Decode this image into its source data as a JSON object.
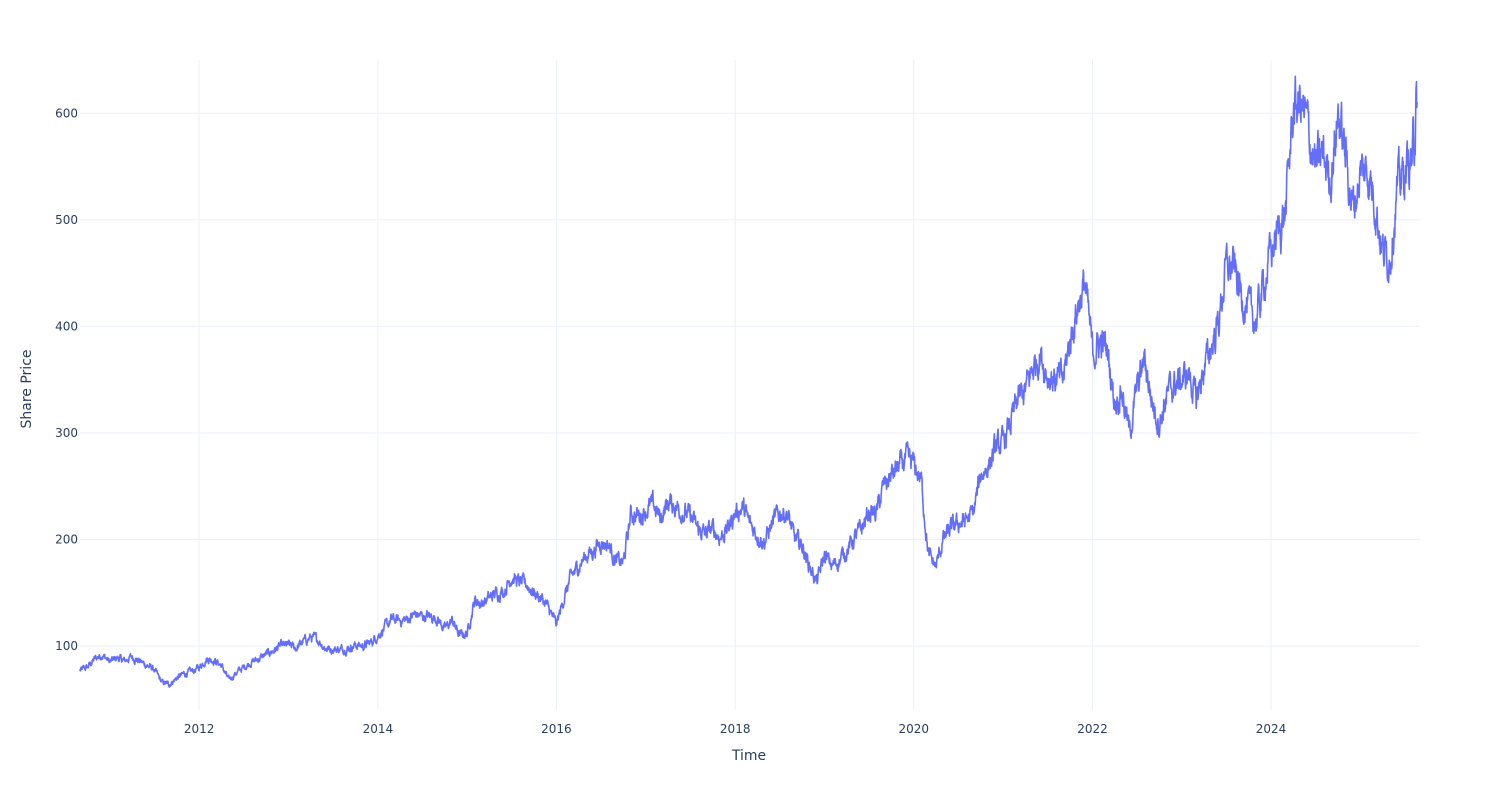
{
  "chart_data": {
    "type": "line",
    "title": "",
    "xlabel": "Time",
    "ylabel": "Share Price",
    "x_tick_labels": [
      "2012",
      "2014",
      "2016",
      "2018",
      "2020",
      "2022",
      "2024"
    ],
    "y_tick_labels": [
      "100",
      "200",
      "300",
      "400",
      "500",
      "600"
    ],
    "x_range": [
      "2010-09-01",
      "2025-09-01"
    ],
    "y_range": [
      40,
      650
    ],
    "grid": true,
    "legend": "none",
    "line_color": "#636efa",
    "series": [
      {
        "x": [
          "2010-09-01",
          "2010-10-01",
          "2010-11-01",
          "2010-12-01",
          "2011-01-01",
          "2011-02-01",
          "2011-03-01",
          "2011-04-01",
          "2011-05-01",
          "2011-06-01",
          "2011-07-01",
          "2011-08-01",
          "2011-09-01",
          "2011-10-01",
          "2011-11-01",
          "2011-12-01",
          "2012-01-01",
          "2012-02-01",
          "2012-03-01",
          "2012-04-01",
          "2012-05-01",
          "2012-06-01",
          "2012-07-01",
          "2012-08-01",
          "2012-09-01",
          "2012-10-01",
          "2012-11-01",
          "2012-12-01",
          "2013-01-01",
          "2013-02-01",
          "2013-03-01",
          "2013-04-01",
          "2013-05-01",
          "2013-06-01",
          "2013-07-01",
          "2013-08-01",
          "2013-09-01",
          "2013-10-01",
          "2013-11-01",
          "2013-12-01",
          "2014-01-01",
          "2014-02-01",
          "2014-03-01",
          "2014-04-01",
          "2014-05-01",
          "2014-06-01",
          "2014-07-01",
          "2014-08-01",
          "2014-09-01",
          "2014-10-01",
          "2014-11-01",
          "2014-12-01",
          "2015-01-01",
          "2015-02-01",
          "2015-03-01",
          "2015-04-01",
          "2015-05-01",
          "2015-06-01",
          "2015-07-01",
          "2015-08-01",
          "2015-09-01",
          "2015-10-01",
          "2015-11-01",
          "2015-12-01",
          "2016-01-01",
          "2016-02-01",
          "2016-03-01",
          "2016-04-01",
          "2016-05-01",
          "2016-06-01",
          "2016-07-01",
          "2016-08-01",
          "2016-09-01",
          "2016-10-01",
          "2016-11-01",
          "2016-12-01",
          "2017-01-01",
          "2017-02-01",
          "2017-03-01",
          "2017-04-01",
          "2017-05-01",
          "2017-06-01",
          "2017-07-01",
          "2017-08-01",
          "2017-09-01",
          "2017-10-01",
          "2017-11-01",
          "2017-12-01",
          "2018-01-01",
          "2018-02-01",
          "2018-03-01",
          "2018-04-01",
          "2018-05-01",
          "2018-06-01",
          "2018-07-01",
          "2018-08-01",
          "2018-09-01",
          "2018-10-01",
          "2018-11-01",
          "2018-12-01",
          "2019-01-01",
          "2019-02-01",
          "2019-03-01",
          "2019-04-01",
          "2019-05-01",
          "2019-06-01",
          "2019-07-01",
          "2019-08-01",
          "2019-09-01",
          "2019-10-01",
          "2019-11-01",
          "2019-12-01",
          "2020-01-01",
          "2020-02-01",
          "2020-03-01",
          "2020-04-01",
          "2020-05-01",
          "2020-06-01",
          "2020-07-01",
          "2020-08-01",
          "2020-09-01",
          "2020-10-01",
          "2020-11-01",
          "2020-12-01",
          "2021-01-01",
          "2021-02-01",
          "2021-03-01",
          "2021-04-01",
          "2021-05-01",
          "2021-06-01",
          "2021-07-01",
          "2021-08-01",
          "2021-09-01",
          "2021-10-01",
          "2021-11-01",
          "2021-12-01",
          "2022-01-01",
          "2022-02-01",
          "2022-03-01",
          "2022-04-01",
          "2022-05-01",
          "2022-06-01",
          "2022-07-01",
          "2022-08-01",
          "2022-09-01",
          "2022-10-01",
          "2022-11-01",
          "2022-12-01",
          "2023-01-01",
          "2023-02-01",
          "2023-03-01",
          "2023-04-01",
          "2023-05-01",
          "2023-06-01",
          "2023-07-01",
          "2023-08-01",
          "2023-09-01",
          "2023-10-01",
          "2023-11-01",
          "2023-12-01",
          "2024-01-01",
          "2024-02-01",
          "2024-03-01",
          "2024-04-01",
          "2024-05-01",
          "2024-06-01",
          "2024-07-01",
          "2024-08-01",
          "2024-09-01",
          "2024-10-01",
          "2024-11-01",
          "2024-12-01",
          "2025-01-01",
          "2025-02-01",
          "2025-03-01",
          "2025-04-01",
          "2025-05-01",
          "2025-06-01",
          "2025-07-01",
          "2025-08-01",
          "2025-08-20"
        ],
        "y": [
          77,
          80,
          88,
          92,
          85,
          89,
          86,
          90,
          86,
          82,
          78,
          66,
          64,
          70,
          74,
          76,
          80,
          88,
          87,
          82,
          68,
          75,
          80,
          85,
          88,
          92,
          96,
          100,
          101,
          98,
          104,
          108,
          106,
          98,
          97,
          97,
          98,
          101,
          100,
          103,
          110,
          118,
          125,
          124,
          125,
          130,
          128,
          128,
          126,
          116,
          124,
          110,
          112,
          143,
          140,
          145,
          150,
          152,
          165,
          160,
          158,
          150,
          145,
          135,
          120,
          145,
          165,
          175,
          185,
          190,
          198,
          195,
          180,
          178,
          225,
          222,
          228,
          232,
          220,
          235,
          232,
          226,
          222,
          210,
          205,
          210,
          202,
          210,
          225,
          230,
          215,
          205,
          198,
          215,
          225,
          225,
          200,
          195,
          175,
          160,
          185,
          175,
          180,
          190,
          200,
          210,
          225,
          225,
          250,
          260,
          268,
          275,
          270,
          255,
          185,
          175,
          200,
          210,
          215,
          218,
          225,
          260,
          270,
          285,
          290,
          310,
          330,
          340,
          360,
          375,
          355,
          350,
          350,
          385,
          420,
          440,
          375,
          385,
          380,
          330,
          340,
          300,
          340,
          370,
          330,
          310,
          335,
          345,
          350,
          355,
          330,
          360,
          380,
          405,
          455,
          455,
          430,
          415,
          405,
          440,
          470,
          490,
          510,
          605,
          610,
          585,
          550,
          560,
          540,
          600,
          560,
          510,
          545,
          545,
          520,
          470,
          465,
          530,
          545,
          560,
          610
        ]
      }
    ]
  }
}
